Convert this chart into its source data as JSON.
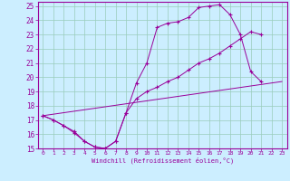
{
  "xlabel": "Windchill (Refroidissement éolien,°C)",
  "bg_color": "#cceeff",
  "grid_color": "#99ccbb",
  "line_color": "#990099",
  "xlim": [
    -0.5,
    23.5
  ],
  "ylim": [
    15,
    25.3
  ],
  "xticks": [
    0,
    1,
    2,
    3,
    4,
    5,
    6,
    7,
    8,
    9,
    10,
    11,
    12,
    13,
    14,
    15,
    16,
    17,
    18,
    19,
    20,
    21,
    22,
    23
  ],
  "yticks": [
    15,
    16,
    17,
    18,
    19,
    20,
    21,
    22,
    23,
    24,
    25
  ],
  "line1_x": [
    0,
    1,
    2,
    3,
    4,
    5,
    6,
    7,
    8,
    9,
    10,
    11,
    12,
    13,
    14,
    15,
    16,
    17,
    18,
    19,
    20,
    21
  ],
  "line1_y": [
    17.3,
    17.0,
    16.6,
    16.1,
    15.5,
    15.1,
    15.0,
    15.5,
    17.5,
    19.6,
    21.0,
    23.5,
    23.8,
    23.9,
    24.2,
    24.9,
    25.0,
    25.1,
    24.4,
    23.0,
    20.4,
    19.7
  ],
  "line2_x": [
    0,
    1,
    2,
    3,
    4,
    5,
    6,
    7,
    8,
    9,
    10,
    11,
    12,
    13,
    14,
    15,
    16,
    17,
    18,
    19,
    20,
    21
  ],
  "line2_y": [
    17.3,
    17.0,
    16.6,
    16.2,
    15.5,
    15.1,
    15.0,
    15.5,
    17.5,
    18.5,
    19.0,
    19.3,
    19.7,
    20.0,
    20.5,
    21.0,
    21.3,
    21.7,
    22.2,
    22.7,
    23.2,
    23.0
  ],
  "line3_x": [
    0,
    23
  ],
  "line3_y": [
    17.3,
    19.7
  ]
}
